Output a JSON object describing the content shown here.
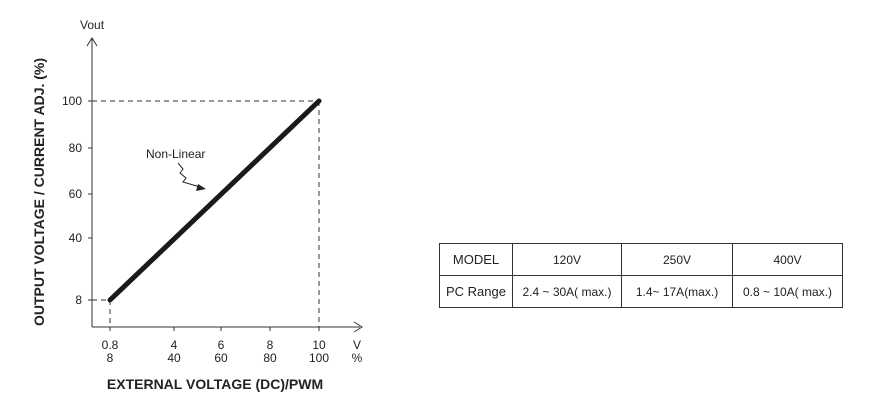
{
  "chart_data": {
    "type": "line",
    "ylabel_top": "Vout",
    "ylabel": "OUTPUT VOLTAGE / CURRENT ADJ. (%)",
    "xlabel": "EXTERNAL VOLTAGE (DC)/PWM",
    "x_unit_top": "V",
    "x_unit_bottom": "%",
    "xticks": [
      {
        "v": 0.8,
        "top": "0.8",
        "bottom": "8"
      },
      {
        "v": 4,
        "top": "4",
        "bottom": "40"
      },
      {
        "v": 6,
        "top": "6",
        "bottom": "60"
      },
      {
        "v": 8,
        "top": "8",
        "bottom": "80"
      },
      {
        "v": 10,
        "top": "10",
        "bottom": "100"
      }
    ],
    "yticks": [
      {
        "v": 8,
        "label": "8"
      },
      {
        "v": 40,
        "label": "40"
      },
      {
        "v": 60,
        "label": "60"
      },
      {
        "v": 80,
        "label": "80"
      },
      {
        "v": 100,
        "label": "100"
      }
    ],
    "series": [
      {
        "x": [
          0.8,
          10
        ],
        "y": [
          8,
          100
        ]
      }
    ],
    "annotation": "Non-Linear",
    "line_color": "#1a1a1a"
  },
  "table": {
    "headers": [
      "MODEL",
      "120V",
      "250V",
      "400V"
    ],
    "rows": [
      [
        "PC Range",
        "2.4 ~ 30A( max.)",
        "1.4~ 17A(max.)",
        "0.8 ~ 10A( max.)"
      ]
    ]
  }
}
